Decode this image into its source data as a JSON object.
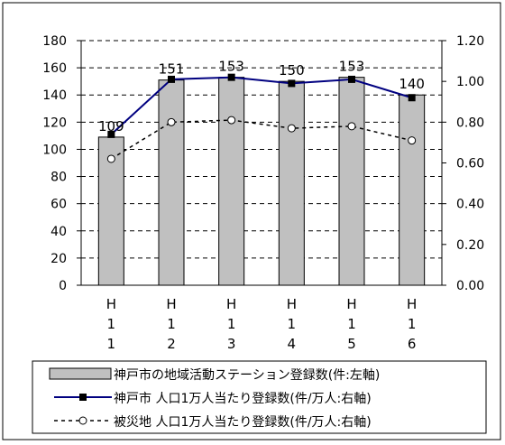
{
  "chart_data": {
    "type": "bar",
    "categories": [
      "H11",
      "H12",
      "H13",
      "H14",
      "H15",
      "H16"
    ],
    "category_tick_chars": [
      [
        "H",
        "1",
        "1"
      ],
      [
        "H",
        "1",
        "2"
      ],
      [
        "H",
        "1",
        "3"
      ],
      [
        "H",
        "1",
        "4"
      ],
      [
        "H",
        "1",
        "5"
      ],
      [
        "H",
        "1",
        "6"
      ]
    ],
    "left_axis": {
      "ylim": [
        0,
        180
      ],
      "ticks": [
        "0",
        "20",
        "40",
        "60",
        "80",
        "100",
        "120",
        "140",
        "160",
        "180"
      ]
    },
    "right_axis": {
      "ylim": [
        0,
        1.2
      ],
      "ticks": [
        "0.00",
        "0.20",
        "0.40",
        "0.60",
        "0.80",
        "1.00",
        "1.20"
      ]
    },
    "grid": true,
    "series": [
      {
        "name": "神戸市の地域活動ステーション登録数(件:左軸)",
        "type": "bar",
        "axis": "left",
        "values": [
          109,
          151,
          153,
          150,
          153,
          140
        ],
        "labels": [
          "109",
          "151",
          "153",
          "150",
          "153",
          "140"
        ],
        "color": "#c0c0c0"
      },
      {
        "name": "神戸市  人口1万人当たり登録数(件/万人:右軸)",
        "type": "line",
        "axis": "right",
        "values": [
          0.74,
          1.01,
          1.02,
          0.99,
          1.01,
          0.92
        ],
        "color": "#000080",
        "marker": "square"
      },
      {
        "name": "被災地  人口1万人当たり登録数(件/万人:右軸)",
        "type": "line",
        "axis": "right",
        "values": [
          0.62,
          0.8,
          0.81,
          0.77,
          0.78,
          0.71
        ],
        "color": "#000000",
        "marker": "circle",
        "dashed": true
      }
    ],
    "legend_position": "bottom"
  }
}
